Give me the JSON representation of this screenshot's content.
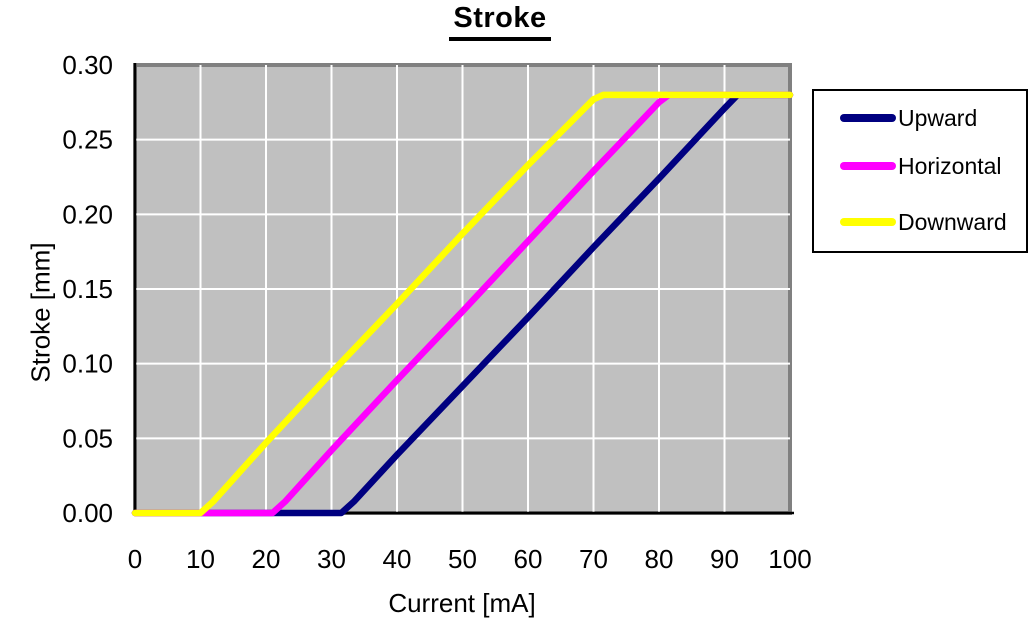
{
  "title": "Stroke",
  "colors": {
    "upward": "#000080",
    "horizontal": "#FF00FF",
    "downward": "#FFFF00",
    "plot_background": "#C0C0C0",
    "gridline": "#FFFFFF",
    "plot_frame": "#808080",
    "axis_line": "#000000",
    "text": "#000000",
    "legend_border": "#000000",
    "legend_background": "#FFFFFF"
  },
  "chart_data": {
    "type": "line",
    "title": "Stroke",
    "xlabel": "Current [mA]",
    "ylabel": "Stroke [mm]",
    "xlim": [
      0,
      100
    ],
    "ylim": [
      0,
      0.3
    ],
    "grid": true,
    "legend_position": "right",
    "x_ticks": [
      {
        "label": "0",
        "value": 0
      },
      {
        "label": "10",
        "value": 10
      },
      {
        "label": "20",
        "value": 20
      },
      {
        "label": "30",
        "value": 30
      },
      {
        "label": "40",
        "value": 40
      },
      {
        "label": "50",
        "value": 50
      },
      {
        "label": "60",
        "value": 60
      },
      {
        "label": "70",
        "value": 70
      },
      {
        "label": "80",
        "value": 80
      },
      {
        "label": "90",
        "value": 90
      },
      {
        "label": "100",
        "value": 100
      }
    ],
    "y_ticks": [
      {
        "label": "0.00",
        "value": 0.0
      },
      {
        "label": "0.05",
        "value": 0.05
      },
      {
        "label": "0.10",
        "value": 0.1
      },
      {
        "label": "0.15",
        "value": 0.15
      },
      {
        "label": "0.20",
        "value": 0.2
      },
      {
        "label": "0.25",
        "value": 0.25
      },
      {
        "label": "0.30",
        "value": 0.3
      }
    ],
    "stroke_saturation_mm": 0.28,
    "series": [
      {
        "name": "Upward",
        "color": "#000080",
        "points": [
          [
            0,
            0
          ],
          [
            10,
            0
          ],
          [
            20,
            0
          ],
          [
            31.5,
            0
          ],
          [
            33.5,
            0.008
          ],
          [
            40,
            0.039
          ],
          [
            50,
            0.085
          ],
          [
            60,
            0.131
          ],
          [
            70,
            0.178
          ],
          [
            80,
            0.224
          ],
          [
            90,
            0.271
          ],
          [
            92,
            0.28
          ],
          [
            100,
            0.28
          ]
        ]
      },
      {
        "name": "Horizontal",
        "color": "#FF00FF",
        "points": [
          [
            0,
            0
          ],
          [
            10,
            0
          ],
          [
            21,
            0
          ],
          [
            23,
            0.008
          ],
          [
            30,
            0.042
          ],
          [
            40,
            0.089
          ],
          [
            50,
            0.135
          ],
          [
            60,
            0.182
          ],
          [
            70,
            0.229
          ],
          [
            80,
            0.275
          ],
          [
            81.5,
            0.28
          ],
          [
            90,
            0.28
          ],
          [
            100,
            0.28
          ]
        ]
      },
      {
        "name": "Downward",
        "color": "#FFFF00",
        "points": [
          [
            0,
            0
          ],
          [
            10,
            0
          ],
          [
            12,
            0.008
          ],
          [
            20,
            0.047
          ],
          [
            30,
            0.094
          ],
          [
            40,
            0.14
          ],
          [
            50,
            0.187
          ],
          [
            60,
            0.233
          ],
          [
            70,
            0.277
          ],
          [
            71.5,
            0.28
          ],
          [
            90,
            0.28
          ],
          [
            100,
            0.28
          ]
        ]
      }
    ]
  }
}
